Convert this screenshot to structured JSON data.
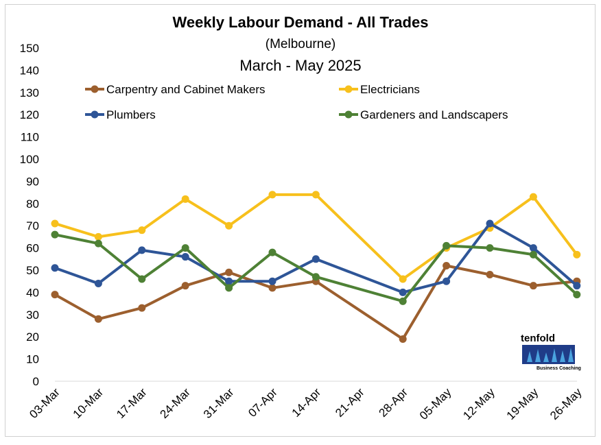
{
  "chart_data": {
    "type": "line",
    "title": "Weekly Labour Demand - All Trades",
    "subtitle": "(Melbourne)",
    "subtitle2": "March - May 2025",
    "xlabel": "",
    "ylabel": "",
    "ylim": [
      0,
      150
    ],
    "ytick_step": 10,
    "grid": false,
    "legend_position": "top",
    "categories": [
      "03-Mar",
      "10-Mar",
      "17-Mar",
      "24-Mar",
      "31-Mar",
      "07-Apr",
      "14-Apr",
      "21-Apr",
      "28-Apr",
      "05-May",
      "12-May",
      "19-May",
      "26-May"
    ],
    "series": [
      {
        "name": "Carpentry and Cabinet Makers",
        "color": "#9c5f2e",
        "values": [
          39,
          28,
          33,
          43,
          49,
          42,
          45,
          null,
          19,
          52,
          48,
          43,
          45
        ]
      },
      {
        "name": "Electricians",
        "color": "#f7c01c",
        "values": [
          71,
          65,
          68,
          82,
          70,
          84,
          84,
          null,
          46,
          60,
          69,
          83,
          57
        ]
      },
      {
        "name": "Plumbers",
        "color": "#2e5597",
        "values": [
          51,
          44,
          59,
          56,
          45,
          45,
          55,
          null,
          40,
          45,
          71,
          60,
          43
        ]
      },
      {
        "name": "Gardeners and Landscapers",
        "color": "#4e8135",
        "values": [
          66,
          62,
          46,
          60,
          42,
          58,
          47,
          null,
          36,
          61,
          60,
          57,
          39
        ]
      }
    ]
  },
  "logo": {
    "text": "tenfold",
    "tagline": "Business Coaching",
    "color": "#1f3c88",
    "accent": "#4aa3df"
  }
}
